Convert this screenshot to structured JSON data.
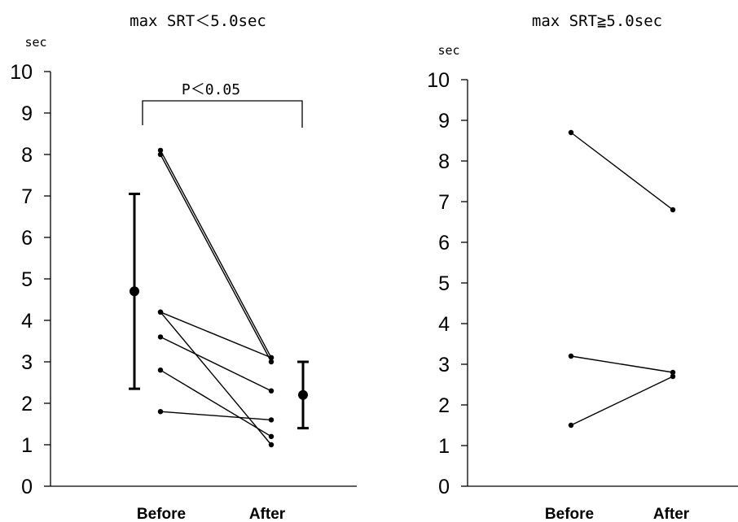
{
  "chart_data": [
    {
      "type": "line",
      "title": "max SRT＜5.0sec",
      "ylabel": "sec",
      "ylim": [
        0,
        10
      ],
      "yticks": [
        "0",
        "1",
        "2",
        "3",
        "4",
        "5",
        "6",
        "7",
        "8",
        "9",
        "10"
      ],
      "categories": [
        "Before",
        "After"
      ],
      "series": [
        {
          "values": [
            8.1,
            3.1
          ]
        },
        {
          "values": [
            8.0,
            3.0
          ]
        },
        {
          "values": [
            4.2,
            3.1
          ]
        },
        {
          "values": [
            4.2,
            1.0
          ]
        },
        {
          "values": [
            3.6,
            2.3
          ]
        },
        {
          "values": [
            2.8,
            1.2
          ]
        },
        {
          "values": [
            1.8,
            1.6
          ]
        }
      ],
      "summary": [
        {
          "position": "before",
          "mean": 4.7,
          "low": 2.35,
          "high": 7.05
        },
        {
          "position": "after",
          "mean": 2.2,
          "low": 1.4,
          "high": 3.0
        }
      ],
      "annotation": "P＜0.05"
    },
    {
      "type": "line",
      "title": "max SRT≧5.0sec",
      "ylabel": "sec",
      "ylim": [
        0,
        10
      ],
      "yticks": [
        "0",
        "1",
        "2",
        "3",
        "4",
        "5",
        "6",
        "7",
        "8",
        "9",
        "10"
      ],
      "categories": [
        "Before",
        "After"
      ],
      "series": [
        {
          "values": [
            8.7,
            6.8
          ]
        },
        {
          "values": [
            3.2,
            2.8
          ]
        },
        {
          "values": [
            1.5,
            2.7
          ]
        }
      ]
    }
  ]
}
